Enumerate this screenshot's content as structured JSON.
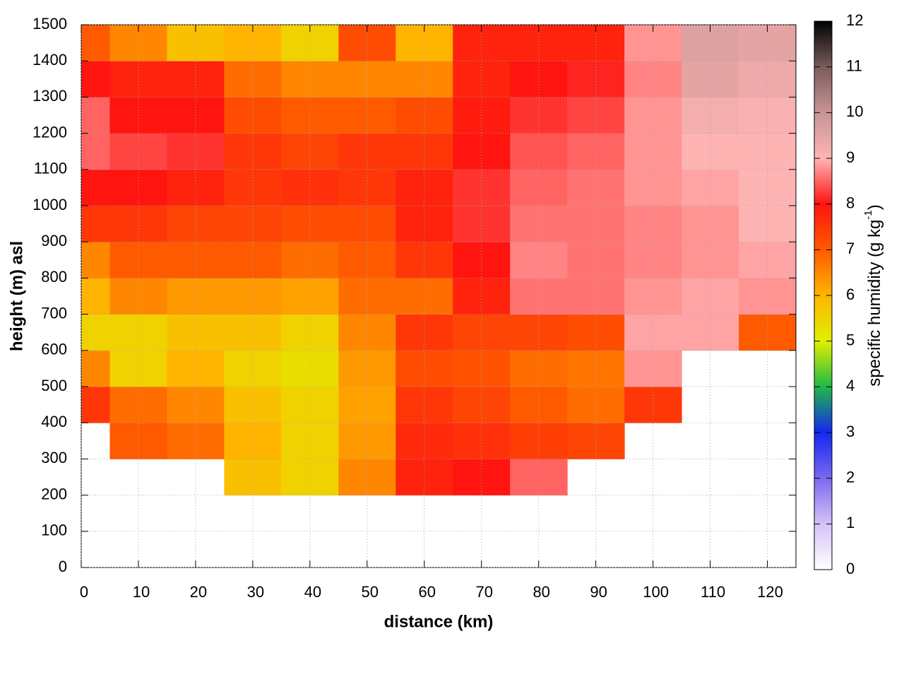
{
  "chart_data": {
    "type": "heatmap",
    "xlabel": "distance (km)",
    "ylabel": "height (m) asl",
    "zlabel": [
      "specific humidity (g kg",
      "-1",
      ")"
    ],
    "xlim": [
      0,
      125
    ],
    "xticks": [
      0,
      10,
      20,
      30,
      40,
      50,
      60,
      70,
      80,
      90,
      100,
      110,
      120
    ],
    "ylim": [
      0,
      1500
    ],
    "yticks": [
      0,
      100,
      200,
      300,
      400,
      500,
      600,
      700,
      800,
      900,
      1000,
      1100,
      1200,
      1300,
      1400,
      1500
    ],
    "zlim": [
      0,
      12
    ],
    "zticks": [
      0,
      1,
      2,
      3,
      4,
      5,
      6,
      7,
      8,
      9,
      10,
      11,
      12
    ],
    "colors": [
      "#ffffff",
      "#d4c2f8",
      "#7a68f0",
      "#1428f0",
      "#20b848",
      "#e0f000",
      "#ffb400",
      "#ff5a00",
      "#ff1410",
      "#ffb4b4",
      "#c89494",
      "#7a5c5c",
      "#000000"
    ],
    "grid": true,
    "x": [
      0,
      10,
      20,
      30,
      40,
      50,
      60,
      70,
      80,
      90,
      100,
      110,
      120
    ],
    "y": [
      50,
      150,
      250,
      350,
      450,
      550,
      650,
      750,
      850,
      950,
      1050,
      1150,
      1250,
      1350,
      1450
    ],
    "z": [
      [
        null,
        null,
        null,
        null,
        null,
        null,
        null,
        null,
        null,
        null,
        null,
        null,
        null
      ],
      [
        null,
        null,
        null,
        null,
        null,
        null,
        null,
        null,
        null,
        null,
        null,
        null,
        null
      ],
      [
        null,
        null,
        null,
        5.8,
        5.5,
        6.5,
        7.8,
        8,
        8.5,
        null,
        null,
        null,
        null
      ],
      [
        null,
        7,
        6.8,
        6,
        5.5,
        6.3,
        7.7,
        7.6,
        7.4,
        7.3,
        null,
        null,
        null
      ],
      [
        7.5,
        6.8,
        6.5,
        5.8,
        5.5,
        6.2,
        7.5,
        7.3,
        7,
        6.8,
        7.5,
        null,
        null
      ],
      [
        6.5,
        5.5,
        6,
        5.5,
        5.3,
        6.3,
        7.2,
        7.1,
        6.8,
        6.7,
        8.8,
        null,
        null
      ],
      [
        5.5,
        5.5,
        5.8,
        5.8,
        5.5,
        6.5,
        7.5,
        7.3,
        7.3,
        7.2,
        8.9,
        8.9,
        7
      ],
      [
        6,
        6.5,
        6.3,
        6.3,
        6.2,
        6.8,
        6.8,
        7.8,
        8.6,
        8.6,
        8.8,
        8.9,
        8.8
      ],
      [
        6.5,
        7,
        7,
        7,
        6.8,
        7,
        7.5,
        8,
        8.7,
        8.6,
        8.7,
        8.8,
        8.9
      ],
      [
        7.5,
        7.5,
        7.3,
        7.3,
        7.2,
        7.2,
        7.8,
        8.2,
        8.6,
        8.6,
        8.7,
        8.8,
        9
      ],
      [
        8,
        8,
        7.8,
        7.5,
        7.6,
        7.5,
        7.8,
        8.2,
        8.5,
        8.6,
        8.8,
        8.9,
        9
      ],
      [
        8.5,
        8.3,
        8.2,
        7.5,
        7.3,
        7.5,
        7.5,
        8,
        8.4,
        8.5,
        8.8,
        9,
        9
      ],
      [
        8.5,
        8,
        8,
        7.2,
        7,
        7,
        7.2,
        7.9,
        8.2,
        8.3,
        8.8,
        9.2,
        9.1
      ],
      [
        8,
        7.8,
        7.8,
        6.8,
        6.5,
        6.5,
        6.5,
        7.8,
        8,
        8.1,
        8.7,
        9.5,
        9.3
      ],
      [
        7,
        6.5,
        5.8,
        6,
        5.5,
        7.2,
        6,
        7.8,
        7.8,
        7.8,
        8.8,
        9.6,
        9.5
      ]
    ]
  }
}
